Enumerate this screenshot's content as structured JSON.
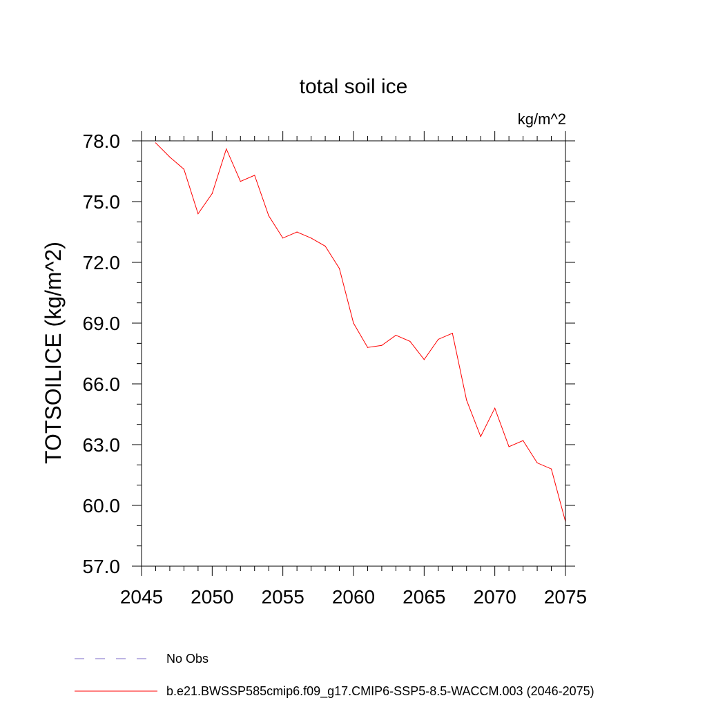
{
  "chart_data": {
    "type": "line",
    "title": "total soil ice",
    "units_label": "kg/m^2",
    "ylabel": "TOTSOILICE  (kg/m^2)",
    "xlabel": "",
    "xlim": [
      2045,
      2075
    ],
    "ylim": [
      57,
      78
    ],
    "x_ticks": [
      2045,
      2050,
      2055,
      2060,
      2065,
      2070,
      2075
    ],
    "x_tick_labels": [
      "2045",
      "2050",
      "2055",
      "2060",
      "2065",
      "2070",
      "2075"
    ],
    "y_ticks": [
      57,
      60,
      63,
      66,
      69,
      72,
      75,
      78
    ],
    "y_tick_labels": [
      "57.0",
      "60.0",
      "63.0",
      "66.0",
      "69.0",
      "72.0",
      "75.0",
      "78.0"
    ],
    "grid": false,
    "legend_position": "bottom-left",
    "series": [
      {
        "name": "b.e21.BWSSP585cmip6.f09_g17.CMIP6-SSP5-8.5-WACCM.003 (2046-2075)",
        "color": "#ff0000",
        "style": "solid",
        "x": [
          2046,
          2047,
          2048,
          2049,
          2050,
          2051,
          2052,
          2053,
          2054,
          2055,
          2056,
          2057,
          2058,
          2059,
          2060,
          2061,
          2062,
          2063,
          2064,
          2065,
          2066,
          2067,
          2068,
          2069,
          2070,
          2071,
          2072,
          2073,
          2074,
          2075
        ],
        "values": [
          77.9,
          77.2,
          76.6,
          74.4,
          75.4,
          77.6,
          76.0,
          76.3,
          74.3,
          73.2,
          73.5,
          73.2,
          72.8,
          71.7,
          69.0,
          67.8,
          67.9,
          68.4,
          68.1,
          67.2,
          68.2,
          68.5,
          65.2,
          63.4,
          64.8,
          62.9,
          63.2,
          62.1,
          61.8,
          59.2
        ]
      }
    ],
    "legend": [
      {
        "label": "No Obs",
        "color": "#7b68c8",
        "style": "dashed"
      },
      {
        "label": "b.e21.BWSSP585cmip6.f09_g17.CMIP6-SSP5-8.5-WACCM.003 (2046-2075)",
        "color": "#ff0000",
        "style": "solid"
      }
    ]
  }
}
